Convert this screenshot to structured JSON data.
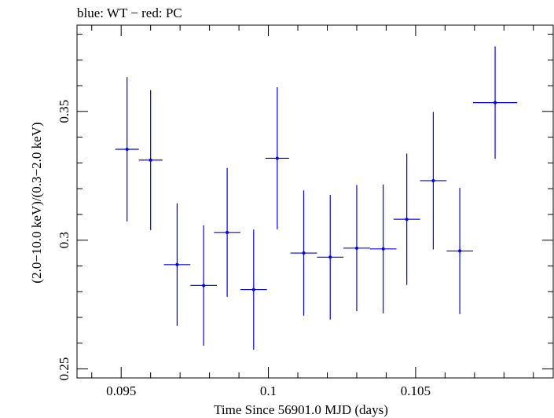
{
  "chart_data": {
    "type": "scatter",
    "title": "blue: WT − red: PC",
    "xlabel": "Time Since 56901.0 MJD (days)",
    "ylabel": "(2.0−10.0 keV)/(0.3−2.0 keV)",
    "xlim": [
      0.0935,
      0.1097
    ],
    "ylim": [
      0.2465,
      0.3835
    ],
    "xticks": [
      0.095,
      0.1,
      0.105
    ],
    "xtick_labels": [
      "0.095",
      "0.1",
      "0.105"
    ],
    "yticks": [
      0.25,
      0.3,
      0.35
    ],
    "ytick_labels": [
      "0.25",
      "0.3",
      "0.35"
    ],
    "grid": false,
    "series": [
      {
        "color": "#0000ee",
        "points": [
          {
            "x": 0.0952,
            "xerr": 0.0004,
            "y": 0.3353,
            "yerr": 0.028
          },
          {
            "x": 0.096,
            "xerr": 0.0004,
            "y": 0.3311,
            "yerr": 0.0272
          },
          {
            "x": 0.0969,
            "xerr": 0.00045,
            "y": 0.2905,
            "yerr": 0.0238
          },
          {
            "x": 0.0978,
            "xerr": 0.00045,
            "y": 0.2824,
            "yerr": 0.0234
          },
          {
            "x": 0.0986,
            "xerr": 0.00045,
            "y": 0.303,
            "yerr": 0.025
          },
          {
            "x": 0.0995,
            "xerr": 0.00045,
            "y": 0.2808,
            "yerr": 0.0233
          },
          {
            "x": 0.1003,
            "xerr": 0.0004,
            "y": 0.3318,
            "yerr": 0.0276
          },
          {
            "x": 0.1012,
            "xerr": 0.00045,
            "y": 0.295,
            "yerr": 0.0243
          },
          {
            "x": 0.1021,
            "xerr": 0.00045,
            "y": 0.2934,
            "yerr": 0.0242
          },
          {
            "x": 0.103,
            "xerr": 0.00045,
            "y": 0.2969,
            "yerr": 0.0245
          },
          {
            "x": 0.1039,
            "xerr": 0.00045,
            "y": 0.2966,
            "yerr": 0.025
          },
          {
            "x": 0.1047,
            "xerr": 0.00045,
            "y": 0.3081,
            "yerr": 0.0255
          },
          {
            "x": 0.1056,
            "xerr": 0.00045,
            "y": 0.3231,
            "yerr": 0.0267
          },
          {
            "x": 0.1065,
            "xerr": 0.00045,
            "y": 0.2958,
            "yerr": 0.0245
          },
          {
            "x": 0.1077,
            "xerr": 0.00075,
            "y": 0.3534,
            "yerr": 0.0218
          }
        ]
      }
    ]
  }
}
